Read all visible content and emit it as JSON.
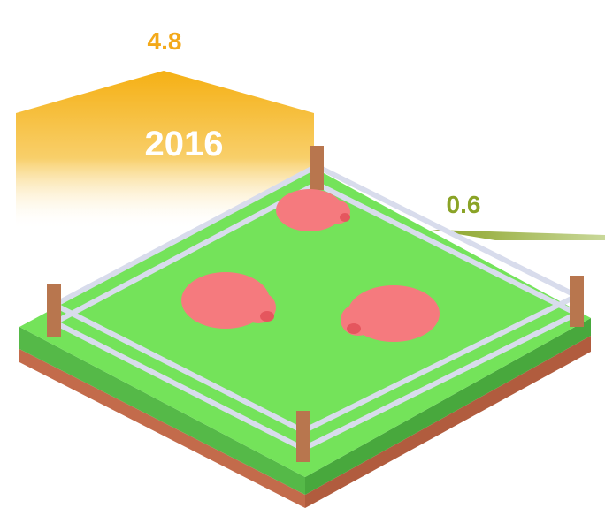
{
  "labels": {
    "top_value": "4.8",
    "year": "2016",
    "right_value": "0.6"
  }
}
